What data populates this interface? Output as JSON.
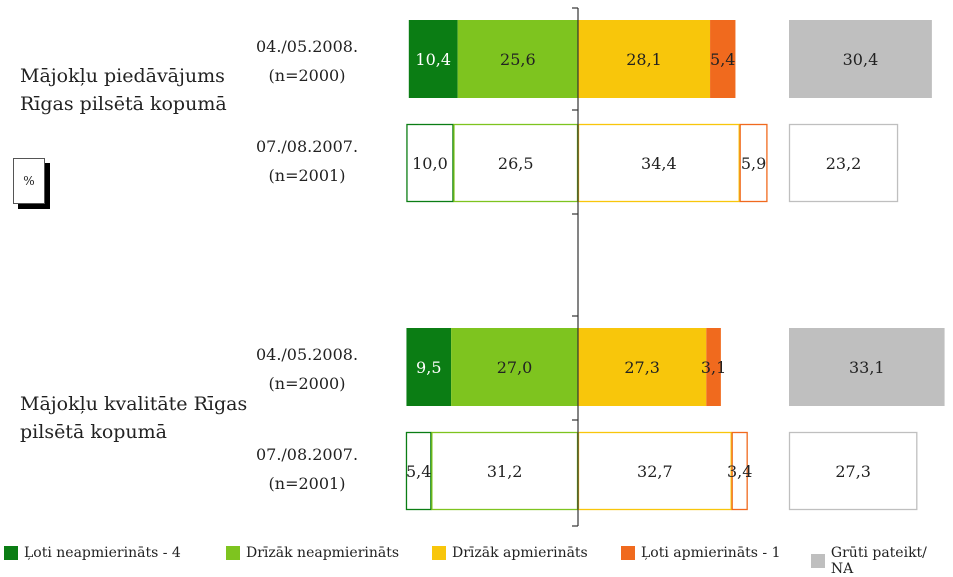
{
  "unit_label": "%",
  "colors": {
    "very_dissatisfied": "#0b7d14",
    "rather_dissatisfied": "#7ec41f",
    "rather_satisfied": "#f8c60b",
    "very_satisfied": "#f06a1e",
    "hard_to_say": "#bfbfbf"
  },
  "chart_data": {
    "type": "bar",
    "orientation": "horizontal-stacked-diverging",
    "series": [
      {
        "key": "very_dissatisfied",
        "name": "Ļoti neapmierināts - 4"
      },
      {
        "key": "rather_dissatisfied",
        "name": "Drīzāk neapmierināts"
      },
      {
        "key": "rather_satisfied",
        "name": "Drīzāk apmierināts"
      },
      {
        "key": "very_satisfied",
        "name": "Ļoti apmierināts - 1"
      },
      {
        "key": "hard_to_say",
        "name": "Grūti pateikt/ NA"
      }
    ],
    "groups": [
      {
        "title": "Mājokļu piedāvājums\nRīgas pilsētā kopumā",
        "rows": [
          {
            "period": "04./05.2008.",
            "n": "(n=2000)",
            "filled": true,
            "values": {
              "very_dissatisfied": 10.4,
              "rather_dissatisfied": 25.6,
              "rather_satisfied": 28.1,
              "very_satisfied": 5.4,
              "hard_to_say": 30.4
            },
            "labels": {
              "very_dissatisfied": "10,4",
              "rather_dissatisfied": "25,6",
              "rather_satisfied": "28,1",
              "very_satisfied": "5,4",
              "hard_to_say": "30,4"
            }
          },
          {
            "period": "07./08.2007.",
            "n": "(n=2001)",
            "filled": false,
            "values": {
              "very_dissatisfied": 10.0,
              "rather_dissatisfied": 26.5,
              "rather_satisfied": 34.4,
              "very_satisfied": 5.9,
              "hard_to_say": 23.2
            },
            "labels": {
              "very_dissatisfied": "10,0",
              "rather_dissatisfied": "26,5",
              "rather_satisfied": "34,4",
              "very_satisfied": "5,9",
              "hard_to_say": "23,2"
            }
          }
        ]
      },
      {
        "title": "Mājokļu kvalitāte Rīgas\npilsētā kopumā",
        "rows": [
          {
            "period": "04./05.2008.",
            "n": "(n=2000)",
            "filled": true,
            "values": {
              "very_dissatisfied": 9.5,
              "rather_dissatisfied": 27.0,
              "rather_satisfied": 27.3,
              "very_satisfied": 3.1,
              "hard_to_say": 33.1
            },
            "labels": {
              "very_dissatisfied": "9,5",
              "rather_dissatisfied": "27,0",
              "rather_satisfied": "27,3",
              "very_satisfied": "3,1",
              "hard_to_say": "33,1"
            }
          },
          {
            "period": "07./08.2007.",
            "n": "(n=2001)",
            "filled": false,
            "values": {
              "very_dissatisfied": 5.4,
              "rather_dissatisfied": 31.2,
              "rather_satisfied": 32.7,
              "very_satisfied": 3.4,
              "hard_to_say": 27.3
            },
            "labels": {
              "very_dissatisfied": "5,4",
              "rather_dissatisfied": "31,2",
              "rather_satisfied": "32,7",
              "very_satisfied": "3,4",
              "hard_to_say": "27,3"
            }
          }
        ]
      }
    ]
  }
}
